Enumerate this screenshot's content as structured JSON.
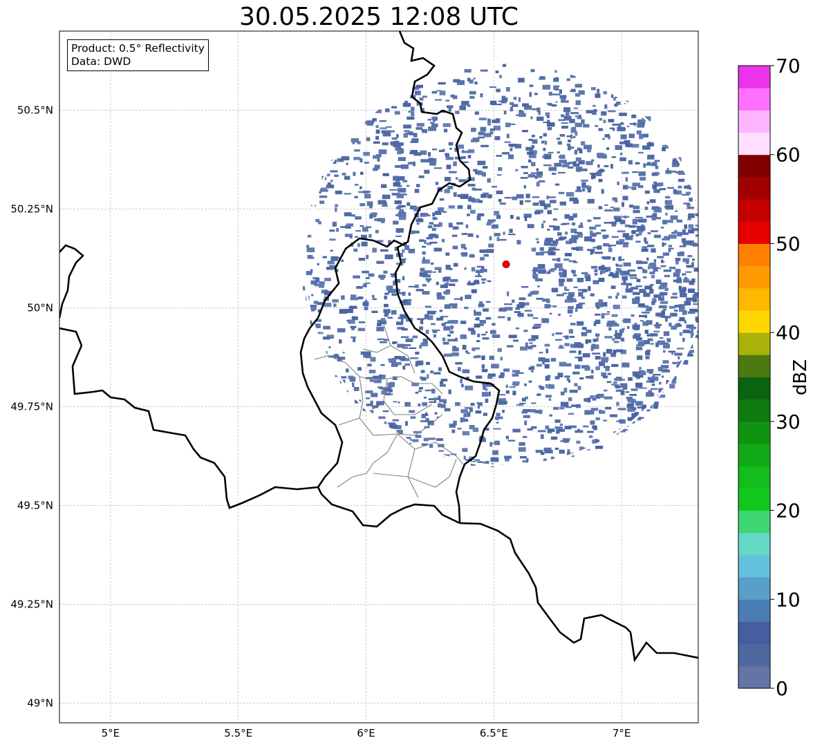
{
  "title": "30.05.2025 12:08 UTC",
  "info": {
    "product": "Product: 0.5° Reflectivity",
    "data": "Data: DWD"
  },
  "map": {
    "lon_range": [
      4.8,
      7.3
    ],
    "lat_range": [
      48.95,
      50.7
    ],
    "x_ticks": [
      {
        "v": 5.0,
        "label": "5°E"
      },
      {
        "v": 5.5,
        "label": "5.5°E"
      },
      {
        "v": 6.0,
        "label": "6°E"
      },
      {
        "v": 6.5,
        "label": "6.5°E"
      },
      {
        "v": 7.0,
        "label": "7°E"
      }
    ],
    "y_ticks": [
      {
        "v": 49.0,
        "label": "49°N"
      },
      {
        "v": 49.25,
        "label": "49.25°N"
      },
      {
        "v": 49.5,
        "label": "49.5°N"
      },
      {
        "v": 49.75,
        "label": "49.75°N"
      },
      {
        "v": 50.0,
        "label": "50°N"
      },
      {
        "v": 50.25,
        "label": "50.25°N"
      },
      {
        "v": 50.5,
        "label": "50.5°N"
      }
    ],
    "grid": true,
    "radar_site": {
      "lon": 6.548,
      "lat": 50.11,
      "color": "#ff0000"
    },
    "radar_range_deg_lat": 0.52,
    "echo_color": "#5070a8"
  },
  "colorbar": {
    "label": "dBZ",
    "min": 0,
    "max": 70,
    "step": 2.5,
    "ticks": [
      {
        "v": 0,
        "label": "0"
      },
      {
        "v": 10,
        "label": "10"
      },
      {
        "v": 20,
        "label": "20"
      },
      {
        "v": 30,
        "label": "30"
      },
      {
        "v": 40,
        "label": "40"
      },
      {
        "v": 50,
        "label": "50"
      },
      {
        "v": 60,
        "label": "60"
      },
      {
        "v": 70,
        "label": "70"
      }
    ],
    "colors": [
      "#6474a6",
      "#51679f",
      "#445ea0",
      "#4a7db3",
      "#599fc7",
      "#64c1dd",
      "#63d8c4",
      "#3ed672",
      "#12c71c",
      "#12bd1c",
      "#12a916",
      "#0f9412",
      "#0d7b10",
      "#0a6310",
      "#4a7a10",
      "#aab20a",
      "#ffd700",
      "#ffb700",
      "#ff9a00",
      "#ff7f00",
      "#e60000",
      "#c40000",
      "#a00000",
      "#800000",
      "#ffe0ff",
      "#ffb4ff",
      "#ff70ff",
      "#ea33ea"
    ]
  }
}
